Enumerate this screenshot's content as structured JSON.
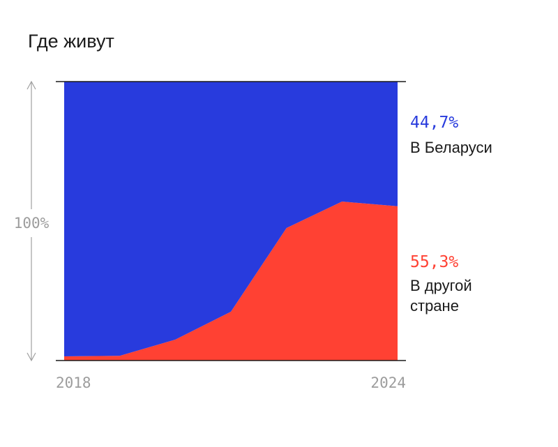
{
  "chart_data": {
    "type": "area",
    "title": "Где живут",
    "x_ticks": [
      "2018",
      "2024"
    ],
    "y_axis_label": "100%",
    "ylim": [
      0,
      100
    ],
    "x": [
      2018,
      2019,
      2020,
      2021,
      2022,
      2023,
      2024
    ],
    "stacking": "percent",
    "series": [
      {
        "name": "В другой стране",
        "value_label": "55,3%",
        "color": "#ff4133",
        "values": [
          1.5,
          1.7,
          7.5,
          17.5,
          47.5,
          57,
          55.3
        ]
      },
      {
        "name": "В Беларуси",
        "value_label": "44,7%",
        "color": "#283bdd",
        "values": [
          98.5,
          98.3,
          92.5,
          82.5,
          52.5,
          43,
          44.7
        ]
      }
    ],
    "grid": false,
    "legend": "right"
  }
}
